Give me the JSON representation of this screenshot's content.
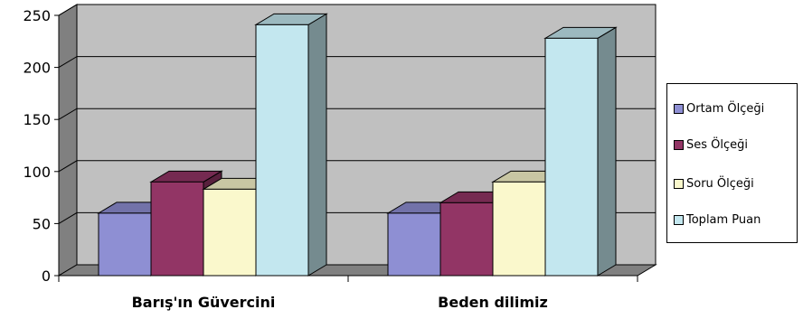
{
  "chart_data": {
    "type": "bar",
    "three_d": true,
    "categories": [
      "Barış'ın Güvercini",
      "Beden dilimiz"
    ],
    "series": [
      {
        "name": "Ortam Ölçeği",
        "values": [
          60,
          60
        ],
        "color": "#8E8FD3"
      },
      {
        "name": "Ses Ölçeği",
        "values": [
          90,
          70
        ],
        "color": "#923565"
      },
      {
        "name": "Soru Ölçeği",
        "values": [
          83,
          90
        ],
        "color": "#FAF8CC"
      },
      {
        "name": "Toplam Puan",
        "values": [
          241,
          228
        ],
        "color": "#C3E7EF"
      }
    ],
    "y_ticks": [
      "0",
      "50",
      "100",
      "150",
      "200",
      "250"
    ],
    "ylim": [
      0,
      250
    ],
    "grid": true,
    "legend_position": "right",
    "colors": {
      "wall": "#C0C0C0",
      "wall_side": "#808080",
      "floor": "#808080",
      "gridline": "#000000"
    }
  }
}
